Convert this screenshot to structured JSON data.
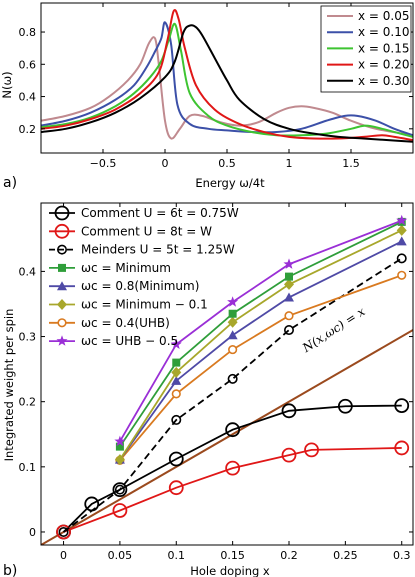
{
  "colors": {
    "x005": "#c08a8f",
    "x010": "#3c50a8",
    "x015": "#3ec431",
    "x020": "#e01717",
    "x030": "#000000",
    "minimum": "#2f9e3a",
    "min08": "#4f4aa6",
    "min01": "#a8a72b",
    "uhb04": "#d97a20",
    "uhb05": "#9a2fd6",
    "diag": "#9b4a1e",
    "ref": "#000000",
    "red": "#e01717"
  },
  "chart_data": [
    {
      "type": "line",
      "panel_label": "a)",
      "xlabel": "Energy ω/4t",
      "ylabel": "N(ω)",
      "xlim": [
        -1.0,
        2.0
      ],
      "ylim": [
        0.05,
        0.98
      ],
      "xticks": [
        -0.5,
        0,
        0.5,
        1,
        1.5
      ],
      "xtick_labels": [
        "−0.5",
        "0",
        "0.5",
        "1",
        "1.5"
      ],
      "yticks": [
        0.2,
        0.4,
        0.6,
        0.8
      ],
      "ytick_labels": [
        "0.2",
        "0.4",
        "0.6",
        "0.8"
      ],
      "legend_position": "top-right",
      "series": [
        {
          "name": "x = 0.05",
          "color_key": "x005",
          "x": [
            -1.0,
            -0.8,
            -0.6,
            -0.45,
            -0.3,
            -0.2,
            -0.13,
            -0.08,
            -0.05,
            0.0,
            0.05,
            0.12,
            0.2,
            0.3,
            0.45,
            0.6,
            0.75,
            0.9,
            1.0,
            1.1,
            1.2,
            1.35,
            1.5,
            1.7,
            2.0
          ],
          "y": [
            0.25,
            0.28,
            0.33,
            0.4,
            0.5,
            0.6,
            0.73,
            0.76,
            0.6,
            0.25,
            0.14,
            0.2,
            0.28,
            0.28,
            0.24,
            0.22,
            0.24,
            0.3,
            0.33,
            0.34,
            0.33,
            0.3,
            0.25,
            0.2,
            0.16
          ]
        },
        {
          "name": "x = 0.10",
          "color_key": "x010",
          "x": [
            -1.0,
            -0.8,
            -0.6,
            -0.4,
            -0.25,
            -0.15,
            -0.08,
            -0.03,
            0.0,
            0.05,
            0.1,
            0.2,
            0.35,
            0.5,
            0.7,
            0.9,
            1.1,
            1.3,
            1.45,
            1.55,
            1.7,
            1.85,
            2.0
          ],
          "y": [
            0.22,
            0.25,
            0.3,
            0.38,
            0.47,
            0.58,
            0.68,
            0.76,
            0.86,
            0.72,
            0.35,
            0.23,
            0.2,
            0.19,
            0.18,
            0.18,
            0.2,
            0.25,
            0.28,
            0.28,
            0.25,
            0.2,
            0.16
          ]
        },
        {
          "name": "x = 0.15",
          "color_key": "x015",
          "x": [
            -1.0,
            -0.8,
            -0.6,
            -0.4,
            -0.25,
            -0.12,
            -0.03,
            0.03,
            0.08,
            0.13,
            0.2,
            0.35,
            0.5,
            0.7,
            0.9,
            1.1,
            1.3,
            1.5,
            1.62,
            1.75,
            1.9,
            2.0
          ],
          "y": [
            0.21,
            0.23,
            0.27,
            0.34,
            0.42,
            0.52,
            0.62,
            0.75,
            0.85,
            0.68,
            0.42,
            0.28,
            0.22,
            0.18,
            0.16,
            0.16,
            0.17,
            0.2,
            0.22,
            0.2,
            0.17,
            0.15
          ]
        },
        {
          "name": "x = 0.20",
          "color_key": "x020",
          "x": [
            -1.0,
            -0.8,
            -0.6,
            -0.4,
            -0.2,
            -0.05,
            0.02,
            0.07,
            0.11,
            0.16,
            0.25,
            0.4,
            0.6,
            0.8,
            1.0,
            1.2,
            1.4,
            1.6,
            1.75,
            1.85,
            2.0
          ],
          "y": [
            0.2,
            0.22,
            0.26,
            0.32,
            0.42,
            0.55,
            0.75,
            0.93,
            0.88,
            0.7,
            0.47,
            0.32,
            0.23,
            0.18,
            0.15,
            0.14,
            0.14,
            0.15,
            0.16,
            0.15,
            0.13
          ]
        },
        {
          "name": "x = 0.30",
          "color_key": "x030",
          "x": [
            -1.0,
            -0.8,
            -0.6,
            -0.4,
            -0.2,
            0.0,
            0.08,
            0.15,
            0.2,
            0.25,
            0.3,
            0.4,
            0.5,
            0.6,
            0.8,
            1.0,
            1.2,
            1.4,
            1.6,
            1.8,
            2.0
          ],
          "y": [
            0.18,
            0.2,
            0.24,
            0.3,
            0.39,
            0.52,
            0.62,
            0.8,
            0.84,
            0.83,
            0.78,
            0.64,
            0.5,
            0.38,
            0.26,
            0.2,
            0.17,
            0.15,
            0.14,
            0.13,
            0.12
          ]
        }
      ]
    },
    {
      "type": "line",
      "panel_label": "b)",
      "xlabel": "Hole doping x",
      "ylabel": "Integrated weight per spin",
      "xlim": [
        -0.02,
        0.31
      ],
      "ylim": [
        -0.02,
        0.505
      ],
      "xticks": [
        0,
        0.05,
        0.1,
        0.15,
        0.2,
        0.25,
        0.3
      ],
      "xtick_labels": [
        "0",
        "0.05",
        "0.1",
        "0.15",
        "0.2",
        "0.25",
        "0.3"
      ],
      "yticks": [
        0,
        0.1,
        0.2,
        0.3,
        0.4
      ],
      "ytick_labels": [
        "0",
        "0.1",
        "0.2",
        "0.3",
        "0.4"
      ],
      "legend_position": "top-left",
      "annotation": "N(x,ωc) = x",
      "series": [
        {
          "name": "Comment U = 6t = 0.75W",
          "color_key": "ref",
          "marker": "circle-large",
          "dash": "solid",
          "x": [
            0,
            0.025,
            0.05,
            0.1,
            0.15,
            0.2,
            0.25,
            0.3
          ],
          "y": [
            0,
            0.043,
            0.065,
            0.112,
            0.157,
            0.186,
            0.193,
            0.194
          ]
        },
        {
          "name": "Comment U = 8t = W",
          "color_key": "red",
          "marker": "circle-large",
          "dash": "solid",
          "x": [
            0,
            0.05,
            0.1,
            0.15,
            0.2,
            0.22,
            0.3
          ],
          "y": [
            0,
            0.033,
            0.068,
            0.098,
            0.118,
            0.126,
            0.129
          ]
        },
        {
          "name": "Meinders U = 5t = 1.25W",
          "color_key": "ref",
          "marker": "circle-small",
          "dash": "dashed",
          "x": [
            0,
            0.05,
            0.1,
            0.15,
            0.2,
            0.3
          ],
          "y": [
            0,
            0.065,
            0.172,
            0.235,
            0.31,
            0.42
          ]
        },
        {
          "name": "ωc = Minimum",
          "color_key": "minimum",
          "marker": "square",
          "dash": "solid",
          "x": [
            0.05,
            0.1,
            0.15,
            0.2,
            0.3
          ],
          "y": [
            0.131,
            0.26,
            0.335,
            0.392,
            0.476
          ]
        },
        {
          "name": "ωc = 0.8(Minimum)",
          "color_key": "min08",
          "marker": "triangle",
          "dash": "solid",
          "x": [
            0.05,
            0.1,
            0.15,
            0.2,
            0.3
          ],
          "y": [
            0.111,
            0.232,
            0.302,
            0.36,
            0.446
          ]
        },
        {
          "name": "ωc = Minimum − 0.1",
          "color_key": "min01",
          "marker": "diamond",
          "dash": "solid",
          "x": [
            0.05,
            0.1,
            0.15,
            0.2,
            0.3
          ],
          "y": [
            0.111,
            0.245,
            0.322,
            0.38,
            0.463
          ]
        },
        {
          "name": "ωc = 0.4(UHB)",
          "color_key": "uhb04",
          "marker": "circle-open",
          "dash": "solid",
          "x": [
            0.05,
            0.1,
            0.15,
            0.2,
            0.3
          ],
          "y": [
            0.11,
            0.212,
            0.28,
            0.332,
            0.394
          ]
        },
        {
          "name": "ωc = UHB − 0.5",
          "color_key": "uhb05",
          "marker": "star",
          "dash": "solid",
          "x": [
            0.05,
            0.1,
            0.15,
            0.2,
            0.3
          ],
          "y": [
            0.139,
            0.288,
            0.353,
            0.411,
            0.478
          ]
        },
        {
          "name": "",
          "color_key": "diag",
          "marker": "none",
          "dash": "solid",
          "x": [
            -0.02,
            0.31
          ],
          "y": [
            -0.02,
            0.31
          ]
        }
      ]
    }
  ]
}
